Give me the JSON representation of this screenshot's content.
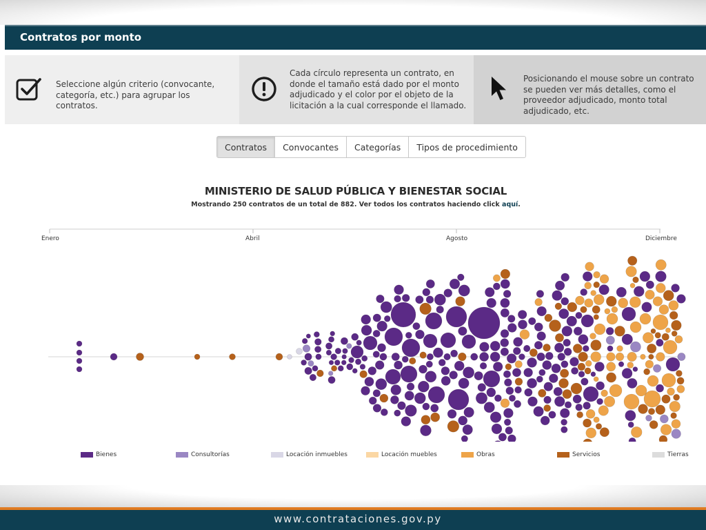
{
  "header": {
    "title": "Contratos por monto"
  },
  "info": [
    {
      "icon": "checkbox-icon",
      "text": "Seleccione algún criterio (convocante, categoría, etc.) para agrupar los contratos."
    },
    {
      "icon": "exclamation-icon",
      "text": "Cada círculo representa un contrato, en donde el tamaño está dado por el monto adjudicado y el color por el objeto de la licitación a la cual corresponde el llamado."
    },
    {
      "icon": "cursor-icon",
      "text": "Posicionando el mouse sobre un contrato se pueden ver más detalles, como el proveedor adjudicado, monto total adjudicado, etc."
    }
  ],
  "tabs": [
    {
      "label": "Contratos",
      "active": true
    },
    {
      "label": "Convocantes",
      "active": false
    },
    {
      "label": "Categorías",
      "active": false
    },
    {
      "label": "Tipos de procedimiento",
      "active": false
    }
  ],
  "chart": {
    "title": "MINISTERIO DE SALUD PÚBLICA Y BIENESTAR SOCIAL",
    "subtitle_pre": "Mostrando 250 contratos de un total de 882. Ver todos los contratos haciendo click ",
    "subtitle_link": "aquí",
    "subtitle_post": "."
  },
  "chart_data": {
    "type": "scatter",
    "axis_labels": [
      "Enero",
      "Abril",
      "Agosto",
      "Diciembre"
    ],
    "legend": [
      {
        "name": "Bienes",
        "color": "#5b2a86"
      },
      {
        "name": "Consultorías",
        "color": "#9a87c3"
      },
      {
        "name": "Locación inmuebles",
        "color": "#d9d7e6"
      },
      {
        "name": "Locación muebles",
        "color": "#fbd7a4"
      },
      {
        "name": "Obras",
        "color": "#eea449"
      },
      {
        "name": "Servicios",
        "color": "#b5611b"
      },
      {
        "name": "Tierras",
        "color": "#dcdcdc"
      }
    ]
  },
  "footer": {
    "url": "www.contrataciones.gov.py"
  }
}
